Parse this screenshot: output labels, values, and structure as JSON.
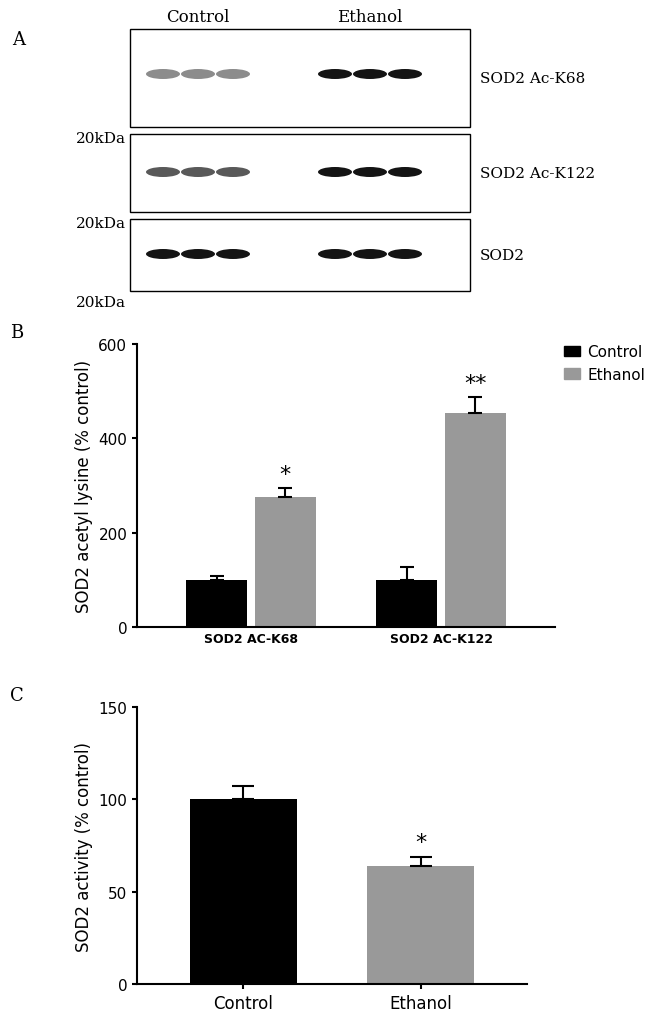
{
  "blot": {
    "panel_label": "A",
    "groups": [
      "Control",
      "Ethanol"
    ],
    "rows": [
      {
        "label": "SOD2 Ac-K68",
        "size_marker": "20kDa"
      },
      {
        "label": "SOD2 Ac-K122",
        "size_marker": "20kDa"
      },
      {
        "label": "SOD2",
        "size_marker": "20kDa"
      }
    ]
  },
  "chart_data": [
    {
      "type": "bar",
      "panel_label": "B",
      "y_label": "SOD2 acetyl lysine (% control)",
      "categories": [
        "SOD2 AC-K68",
        "SOD2 AC-K122"
      ],
      "series": [
        {
          "name": "Control",
          "color": "#000000",
          "values": [
            100,
            100
          ],
          "errors": [
            8,
            28
          ],
          "annotations": [
            null,
            null
          ]
        },
        {
          "name": "Ethanol",
          "color": "#999999",
          "values": [
            275,
            453
          ],
          "errors": [
            20,
            35
          ],
          "annotations": [
            "*",
            "**"
          ]
        }
      ],
      "ylim": [
        0,
        600
      ],
      "yticks": [
        0,
        200,
        400,
        600
      ],
      "legend": "upper right"
    },
    {
      "type": "bar",
      "panel_label": "C",
      "y_label": "SOD2 activity (% control)",
      "categories": [
        "Control",
        "Ethanol"
      ],
      "values": [
        100,
        64
      ],
      "errors": [
        7,
        5
      ],
      "colors": [
        "#000000",
        "#999999"
      ],
      "annotations": [
        null,
        "*"
      ],
      "ylim": [
        0,
        150
      ],
      "yticks": [
        0,
        50,
        100,
        150
      ]
    }
  ]
}
